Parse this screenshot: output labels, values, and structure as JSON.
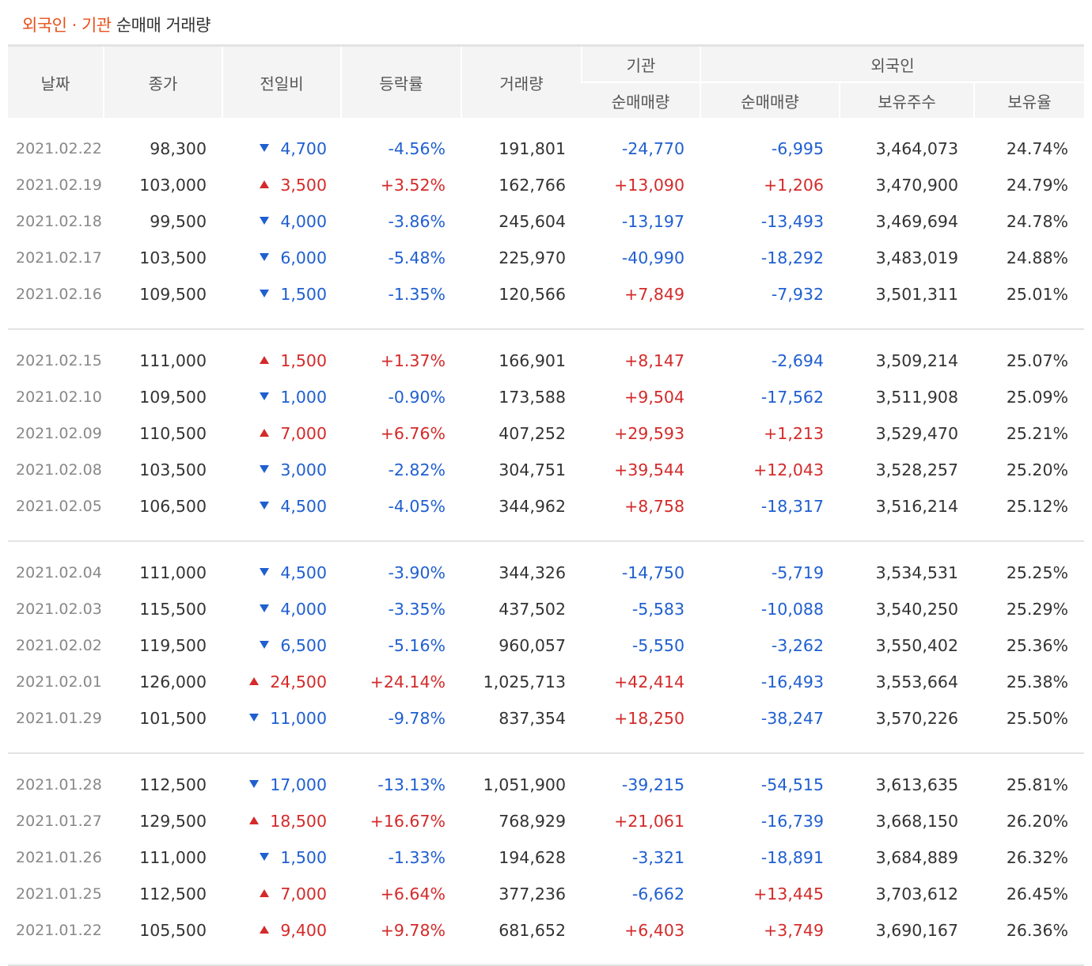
{
  "title": {
    "highlight": "외국인 · 기관",
    "rest": " 순매매 거래량"
  },
  "headers": {
    "date": "날짜",
    "close": "종가",
    "change": "전일비",
    "rate": "등락률",
    "volume": "거래량",
    "inst_group": "기관",
    "foreign_group": "외국인",
    "inst_net": "순매매량",
    "foreign_net": "순매매량",
    "foreign_hold": "보유주수",
    "foreign_ratio": "보유율"
  },
  "colors": {
    "up": "#d42a2a",
    "down": "#1f5fd0",
    "accent": "#e8501a"
  },
  "groups": [
    [
      {
        "date": "2021.02.22",
        "close": "98,300",
        "dir": "dn",
        "change": "4,700",
        "rate": "-4.56%",
        "volume": "191,801",
        "inst": "-24,770",
        "foreign": "-6,995",
        "hold": "3,464,073",
        "ratio": "24.74%"
      },
      {
        "date": "2021.02.19",
        "close": "103,000",
        "dir": "up",
        "change": "3,500",
        "rate": "+3.52%",
        "volume": "162,766",
        "inst": "+13,090",
        "foreign": "+1,206",
        "hold": "3,470,900",
        "ratio": "24.79%"
      },
      {
        "date": "2021.02.18",
        "close": "99,500",
        "dir": "dn",
        "change": "4,000",
        "rate": "-3.86%",
        "volume": "245,604",
        "inst": "-13,197",
        "foreign": "-13,493",
        "hold": "3,469,694",
        "ratio": "24.78%"
      },
      {
        "date": "2021.02.17",
        "close": "103,500",
        "dir": "dn",
        "change": "6,000",
        "rate": "-5.48%",
        "volume": "225,970",
        "inst": "-40,990",
        "foreign": "-18,292",
        "hold": "3,483,019",
        "ratio": "24.88%"
      },
      {
        "date": "2021.02.16",
        "close": "109,500",
        "dir": "dn",
        "change": "1,500",
        "rate": "-1.35%",
        "volume": "120,566",
        "inst": "+7,849",
        "foreign": "-7,932",
        "hold": "3,501,311",
        "ratio": "25.01%"
      }
    ],
    [
      {
        "date": "2021.02.15",
        "close": "111,000",
        "dir": "up",
        "change": "1,500",
        "rate": "+1.37%",
        "volume": "166,901",
        "inst": "+8,147",
        "foreign": "-2,694",
        "hold": "3,509,214",
        "ratio": "25.07%"
      },
      {
        "date": "2021.02.10",
        "close": "109,500",
        "dir": "dn",
        "change": "1,000",
        "rate": "-0.90%",
        "volume": "173,588",
        "inst": "+9,504",
        "foreign": "-17,562",
        "hold": "3,511,908",
        "ratio": "25.09%"
      },
      {
        "date": "2021.02.09",
        "close": "110,500",
        "dir": "up",
        "change": "7,000",
        "rate": "+6.76%",
        "volume": "407,252",
        "inst": "+29,593",
        "foreign": "+1,213",
        "hold": "3,529,470",
        "ratio": "25.21%"
      },
      {
        "date": "2021.02.08",
        "close": "103,500",
        "dir": "dn",
        "change": "3,000",
        "rate": "-2.82%",
        "volume": "304,751",
        "inst": "+39,544",
        "foreign": "+12,043",
        "hold": "3,528,257",
        "ratio": "25.20%"
      },
      {
        "date": "2021.02.05",
        "close": "106,500",
        "dir": "dn",
        "change": "4,500",
        "rate": "-4.05%",
        "volume": "344,962",
        "inst": "+8,758",
        "foreign": "-18,317",
        "hold": "3,516,214",
        "ratio": "25.12%"
      }
    ],
    [
      {
        "date": "2021.02.04",
        "close": "111,000",
        "dir": "dn",
        "change": "4,500",
        "rate": "-3.90%",
        "volume": "344,326",
        "inst": "-14,750",
        "foreign": "-5,719",
        "hold": "3,534,531",
        "ratio": "25.25%"
      },
      {
        "date": "2021.02.03",
        "close": "115,500",
        "dir": "dn",
        "change": "4,000",
        "rate": "-3.35%",
        "volume": "437,502",
        "inst": "-5,583",
        "foreign": "-10,088",
        "hold": "3,540,250",
        "ratio": "25.29%"
      },
      {
        "date": "2021.02.02",
        "close": "119,500",
        "dir": "dn",
        "change": "6,500",
        "rate": "-5.16%",
        "volume": "960,057",
        "inst": "-5,550",
        "foreign": "-3,262",
        "hold": "3,550,402",
        "ratio": "25.36%"
      },
      {
        "date": "2021.02.01",
        "close": "126,000",
        "dir": "up",
        "change": "24,500",
        "rate": "+24.14%",
        "volume": "1,025,713",
        "inst": "+42,414",
        "foreign": "-16,493",
        "hold": "3,553,664",
        "ratio": "25.38%"
      },
      {
        "date": "2021.01.29",
        "close": "101,500",
        "dir": "dn",
        "change": "11,000",
        "rate": "-9.78%",
        "volume": "837,354",
        "inst": "+18,250",
        "foreign": "-38,247",
        "hold": "3,570,226",
        "ratio": "25.50%"
      }
    ],
    [
      {
        "date": "2021.01.28",
        "close": "112,500",
        "dir": "dn",
        "change": "17,000",
        "rate": "-13.13%",
        "volume": "1,051,900",
        "inst": "-39,215",
        "foreign": "-54,515",
        "hold": "3,613,635",
        "ratio": "25.81%"
      },
      {
        "date": "2021.01.27",
        "close": "129,500",
        "dir": "up",
        "change": "18,500",
        "rate": "+16.67%",
        "volume": "768,929",
        "inst": "+21,061",
        "foreign": "-16,739",
        "hold": "3,668,150",
        "ratio": "26.20%"
      },
      {
        "date": "2021.01.26",
        "close": "111,000",
        "dir": "dn",
        "change": "1,500",
        "rate": "-1.33%",
        "volume": "194,628",
        "inst": "-3,321",
        "foreign": "-18,891",
        "hold": "3,684,889",
        "ratio": "26.32%"
      },
      {
        "date": "2021.01.25",
        "close": "112,500",
        "dir": "up",
        "change": "7,000",
        "rate": "+6.64%",
        "volume": "377,236",
        "inst": "-6,662",
        "foreign": "+13,445",
        "hold": "3,703,612",
        "ratio": "26.45%"
      },
      {
        "date": "2021.01.22",
        "close": "105,500",
        "dir": "up",
        "change": "9,400",
        "rate": "+9.78%",
        "volume": "681,652",
        "inst": "+6,403",
        "foreign": "+3,749",
        "hold": "3,690,167",
        "ratio": "26.36%"
      }
    ]
  ]
}
